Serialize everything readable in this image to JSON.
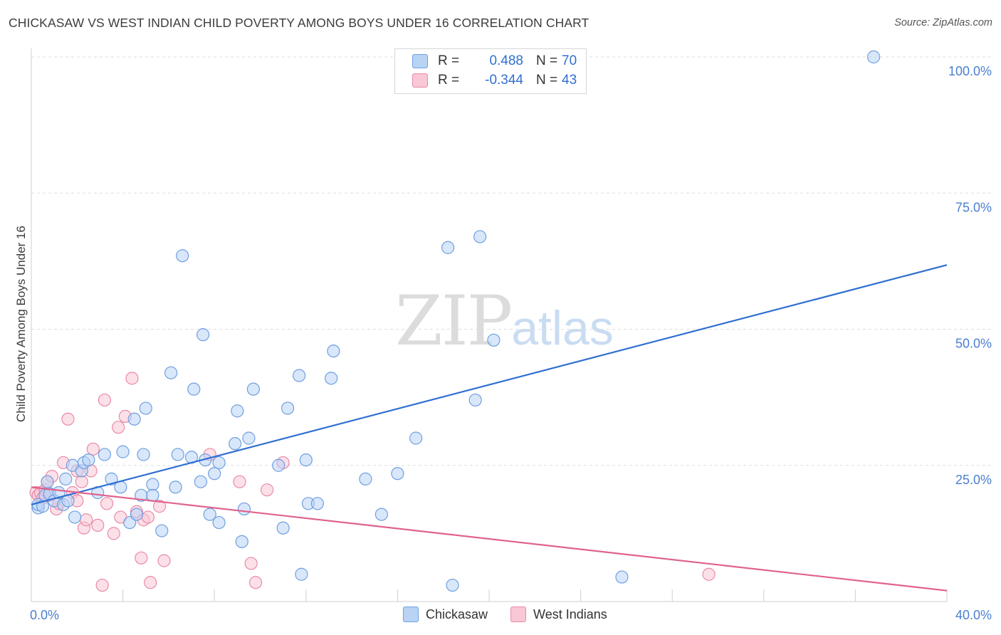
{
  "title": "CHICKASAW VS WEST INDIAN CHILD POVERTY AMONG BOYS UNDER 16 CORRELATION CHART",
  "source": "Source: ZipAtlas.com",
  "watermark": {
    "zip": "ZIP",
    "atlas": "atlas"
  },
  "legend": {
    "rows": [
      {
        "r_label": "R =",
        "r_value": "0.488",
        "n_label": "N =",
        "n_value": "70"
      },
      {
        "r_label": "R =",
        "r_value": "-0.344",
        "n_label": "N =",
        "n_value": "43"
      }
    ]
  },
  "bottom_legend": {
    "a": "Chickasaw",
    "b": "West Indians"
  },
  "colors": {
    "chickasaw_fill": "#b9d3f5",
    "chickasaw_stroke": "#6f9fe0",
    "chickasaw_line": "#2f6fd1",
    "west_fill": "#f9c7d6",
    "west_stroke": "#e98aa8",
    "west_line": "#e0628e",
    "axis_label": "#4a7fd0",
    "grid": "#dddddd"
  },
  "chart_data": {
    "type": "scatter",
    "title": "CHICKASAW VS WEST INDIAN CHILD POVERTY AMONG BOYS UNDER 16 CORRELATION CHART",
    "xlabel": "",
    "ylabel": "Child Poverty Among Boys Under 16",
    "xlim": [
      0,
      40
    ],
    "ylim": [
      0,
      100
    ],
    "x_tick_labels": [
      "0.0%",
      "40.0%"
    ],
    "y_ticks": [
      25,
      50,
      75,
      100
    ],
    "y_tick_labels": [
      "25.0%",
      "50.0%",
      "75.0%",
      "100.0%"
    ],
    "grid": "horizontal dashed",
    "series": [
      {
        "name": "Chickasaw",
        "points": [
          [
            0.3,
            17.2
          ],
          [
            0.3,
            17.8
          ],
          [
            0.5,
            17.5
          ],
          [
            0.6,
            19.5
          ],
          [
            0.7,
            22.0
          ],
          [
            0.8,
            19.8
          ],
          [
            1.0,
            18.5
          ],
          [
            1.2,
            20.0
          ],
          [
            1.4,
            17.8
          ],
          [
            1.5,
            22.5
          ],
          [
            1.6,
            18.5
          ],
          [
            1.8,
            25.0
          ],
          [
            1.9,
            15.5
          ],
          [
            2.2,
            24.0
          ],
          [
            2.3,
            25.5
          ],
          [
            2.5,
            26.0
          ],
          [
            2.9,
            20.0
          ],
          [
            3.2,
            27.0
          ],
          [
            3.5,
            22.5
          ],
          [
            3.9,
            21.0
          ],
          [
            4.0,
            27.5
          ],
          [
            4.3,
            14.5
          ],
          [
            4.5,
            33.5
          ],
          [
            4.6,
            16.0
          ],
          [
            4.8,
            19.5
          ],
          [
            4.9,
            27.0
          ],
          [
            5.0,
            35.5
          ],
          [
            5.3,
            21.5
          ],
          [
            5.3,
            19.5
          ],
          [
            5.7,
            13.0
          ],
          [
            6.1,
            42.0
          ],
          [
            6.3,
            21.0
          ],
          [
            6.4,
            27.0
          ],
          [
            6.6,
            63.5
          ],
          [
            7.0,
            26.5
          ],
          [
            7.1,
            39.0
          ],
          [
            7.4,
            22.0
          ],
          [
            7.5,
            49.0
          ],
          [
            7.6,
            26.0
          ],
          [
            7.8,
            16.0
          ],
          [
            8.0,
            23.5
          ],
          [
            8.2,
            14.5
          ],
          [
            8.2,
            25.5
          ],
          [
            8.9,
            29.0
          ],
          [
            9.0,
            35.0
          ],
          [
            9.2,
            11.0
          ],
          [
            9.3,
            17.0
          ],
          [
            9.5,
            30.0
          ],
          [
            9.7,
            39.0
          ],
          [
            10.8,
            25.0
          ],
          [
            11.0,
            13.5
          ],
          [
            11.2,
            35.5
          ],
          [
            11.7,
            41.5
          ],
          [
            11.8,
            5.0
          ],
          [
            12.0,
            26.0
          ],
          [
            12.1,
            18.0
          ],
          [
            12.5,
            18.0
          ],
          [
            13.1,
            41.0
          ],
          [
            13.2,
            46.0
          ],
          [
            14.6,
            22.5
          ],
          [
            15.3,
            16.0
          ],
          [
            16.0,
            23.5
          ],
          [
            16.8,
            30.0
          ],
          [
            18.2,
            65.0
          ],
          [
            18.4,
            3.0
          ],
          [
            19.4,
            37.0
          ],
          [
            19.6,
            67.0
          ],
          [
            20.2,
            48.0
          ],
          [
            25.8,
            4.5
          ],
          [
            36.8,
            100.0
          ]
        ],
        "trend": [
          [
            0,
            17.8
          ],
          [
            40,
            61.8
          ]
        ]
      },
      {
        "name": "West Indians",
        "points": [
          [
            0.2,
            20.0
          ],
          [
            0.3,
            19.5
          ],
          [
            0.4,
            20.0
          ],
          [
            0.5,
            19.0
          ],
          [
            0.6,
            20.5
          ],
          [
            0.7,
            22.0
          ],
          [
            0.8,
            19.5
          ],
          [
            0.9,
            23.0
          ],
          [
            1.1,
            17.0
          ],
          [
            1.2,
            18.0
          ],
          [
            1.4,
            25.5
          ],
          [
            1.6,
            33.5
          ],
          [
            1.8,
            20.0
          ],
          [
            2.0,
            24.0
          ],
          [
            2.0,
            18.5
          ],
          [
            2.2,
            22.0
          ],
          [
            2.3,
            13.5
          ],
          [
            2.4,
            15.0
          ],
          [
            2.6,
            24.0
          ],
          [
            2.7,
            28.0
          ],
          [
            2.9,
            14.0
          ],
          [
            3.1,
            3.0
          ],
          [
            3.2,
            37.0
          ],
          [
            3.3,
            18.0
          ],
          [
            3.6,
            12.5
          ],
          [
            3.8,
            32.0
          ],
          [
            3.9,
            15.5
          ],
          [
            4.1,
            34.0
          ],
          [
            4.4,
            41.0
          ],
          [
            4.6,
            16.5
          ],
          [
            4.8,
            8.0
          ],
          [
            4.9,
            15.0
          ],
          [
            5.1,
            15.5
          ],
          [
            5.2,
            3.5
          ],
          [
            5.6,
            17.5
          ],
          [
            5.8,
            7.5
          ],
          [
            7.8,
            27.0
          ],
          [
            9.1,
            22.0
          ],
          [
            9.6,
            7.0
          ],
          [
            9.8,
            3.5
          ],
          [
            10.3,
            20.5
          ],
          [
            11.0,
            25.5
          ],
          [
            29.6,
            5.0
          ]
        ],
        "trend": [
          [
            0,
            21.0
          ],
          [
            40,
            2.0
          ]
        ]
      }
    ]
  }
}
